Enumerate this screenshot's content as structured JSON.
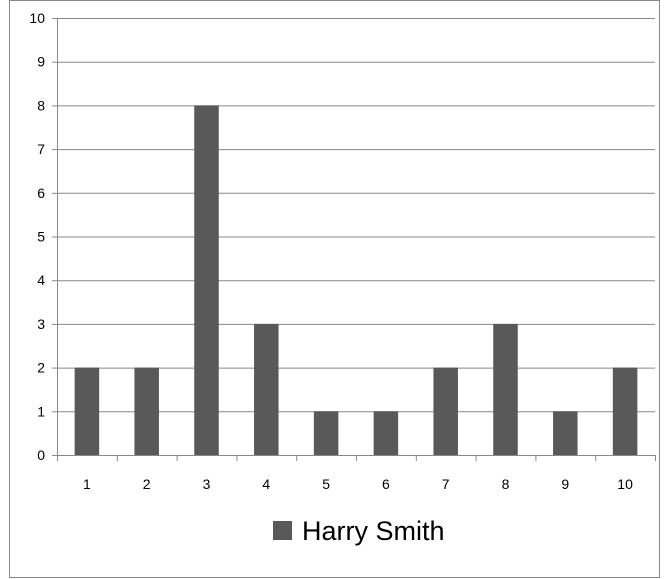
{
  "chart_data": {
    "type": "bar",
    "categories": [
      "1",
      "2",
      "3",
      "4",
      "5",
      "6",
      "7",
      "8",
      "9",
      "10"
    ],
    "series": [
      {
        "name": "Harry Smith",
        "values": [
          2,
          2,
          8,
          3,
          1,
          1,
          2,
          3,
          1,
          2
        ]
      }
    ],
    "ylim": [
      0,
      10
    ],
    "yticks": [
      "0",
      "1",
      "2",
      "3",
      "4",
      "5",
      "6",
      "7",
      "8",
      "9",
      "10"
    ],
    "grid": "horizontal",
    "legend_position": "bottom",
    "bar_color": "#595959",
    "gridline_color": "#888888",
    "border_color": "#888888"
  }
}
